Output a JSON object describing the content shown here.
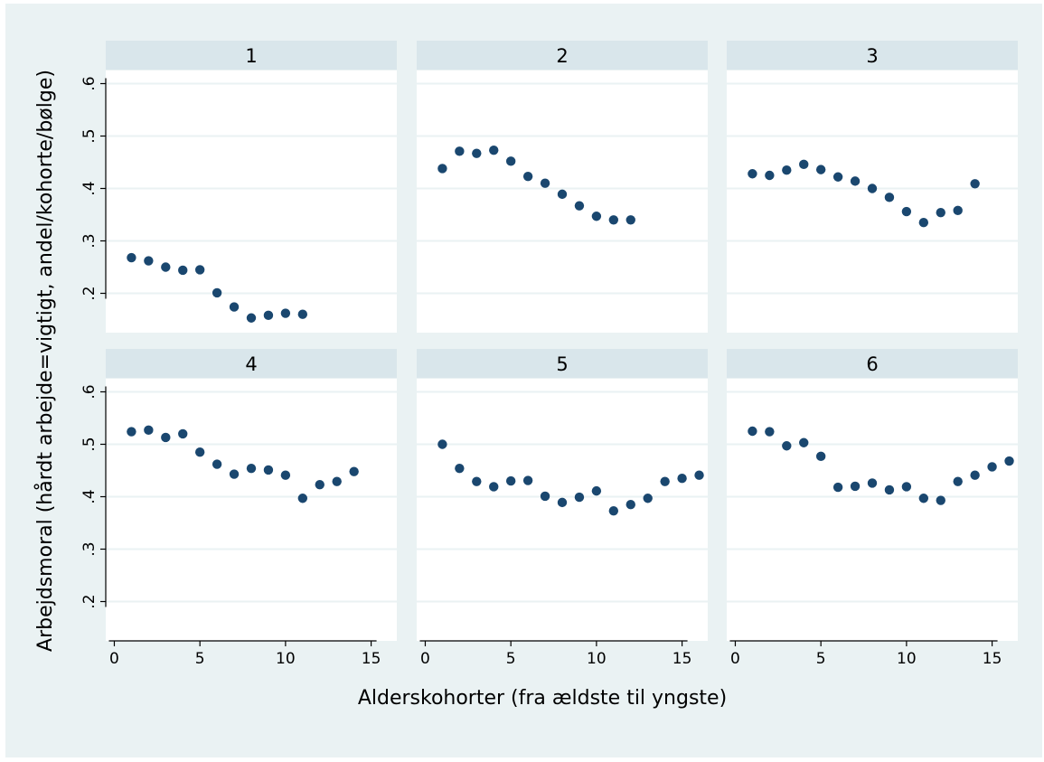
{
  "chart_data": {
    "type": "scatter",
    "xlabel": "Alderskohorter (fra ældste til yngste)",
    "ylabel": "Arbejdsmoral (hårdt arbejde=vigtigt, andel/kohorte/bølge)",
    "xlim": [
      -0.5,
      16.5
    ],
    "ylim": [
      0.125,
      0.625
    ],
    "x_ticks": [
      0,
      5,
      10,
      15
    ],
    "x_tick_labels": [
      "0",
      "5",
      "10",
      "15"
    ],
    "y_ticks": [
      0.2,
      0.3,
      0.4,
      0.5,
      0.6
    ],
    "y_tick_labels": [
      ".2",
      ".3",
      ".4",
      ".5",
      ".6"
    ],
    "grid": true,
    "marker_color": "#1a476f",
    "panels": [
      {
        "title": "1",
        "x": [
          1,
          2,
          3,
          4,
          5,
          6,
          7,
          8,
          9,
          10,
          11
        ],
        "y": [
          0.268,
          0.262,
          0.25,
          0.244,
          0.245,
          0.201,
          0.174,
          0.153,
          0.158,
          0.162,
          0.16
        ]
      },
      {
        "title": "2",
        "x": [
          1,
          2,
          3,
          4,
          5,
          6,
          7,
          8,
          9,
          10,
          11,
          12
        ],
        "y": [
          0.438,
          0.471,
          0.467,
          0.473,
          0.452,
          0.423,
          0.41,
          0.389,
          0.367,
          0.347,
          0.34,
          0.34
        ]
      },
      {
        "title": "3",
        "x": [
          1,
          2,
          3,
          4,
          5,
          6,
          7,
          8,
          9,
          10,
          11,
          12,
          13,
          14
        ],
        "y": [
          0.428,
          0.425,
          0.435,
          0.446,
          0.436,
          0.422,
          0.414,
          0.4,
          0.383,
          0.356,
          0.335,
          0.354,
          0.358,
          0.409
        ]
      },
      {
        "title": "4",
        "x": [
          1,
          2,
          3,
          4,
          5,
          6,
          7,
          8,
          9,
          10,
          11,
          12,
          13,
          14
        ],
        "y": [
          0.524,
          0.527,
          0.513,
          0.52,
          0.485,
          0.462,
          0.443,
          0.454,
          0.451,
          0.441,
          0.397,
          0.423,
          0.429,
          0.448
        ]
      },
      {
        "title": "5",
        "x": [
          1,
          2,
          3,
          4,
          5,
          6,
          7,
          8,
          9,
          10,
          11,
          12,
          13,
          14,
          15,
          16
        ],
        "y": [
          0.5,
          0.454,
          0.429,
          0.419,
          0.43,
          0.431,
          0.401,
          0.389,
          0.399,
          0.411,
          0.373,
          0.385,
          0.397,
          0.429,
          0.435,
          0.441
        ]
      },
      {
        "title": "6",
        "x": [
          1,
          2,
          3,
          4,
          5,
          6,
          7,
          8,
          9,
          10,
          11,
          12,
          13,
          14,
          15,
          16
        ],
        "y": [
          0.525,
          0.524,
          0.497,
          0.503,
          0.477,
          0.418,
          0.42,
          0.426,
          0.413,
          0.419,
          0.397,
          0.393,
          0.429,
          0.441,
          0.457,
          0.468
        ]
      }
    ]
  }
}
